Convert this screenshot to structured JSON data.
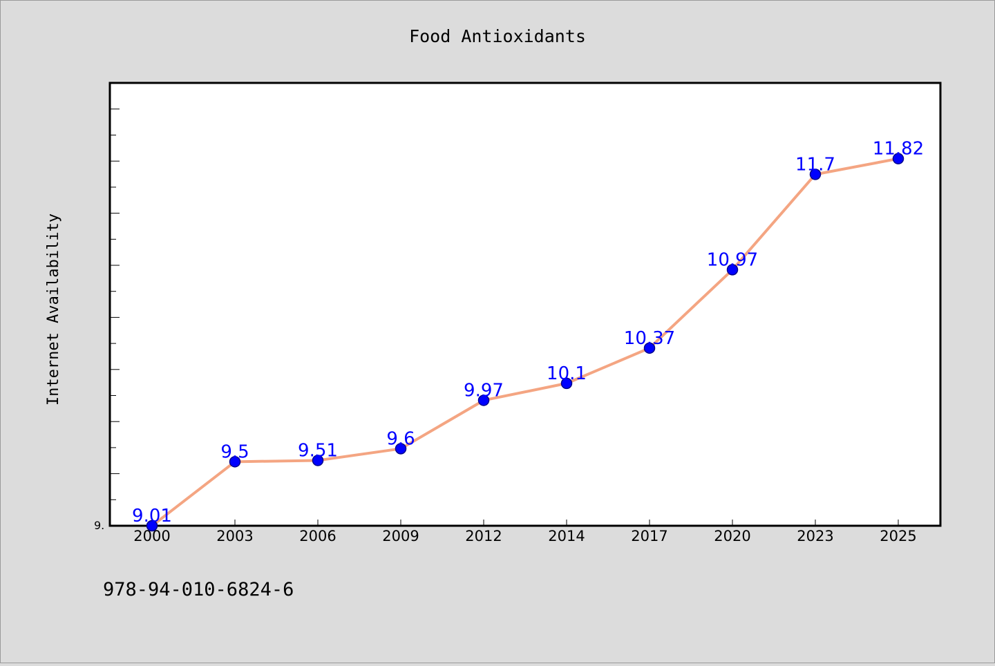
{
  "footer": {
    "code": "978-94-010-6824-6"
  },
  "colors": {
    "background": "#dcdcdc",
    "plot_background": "#ffffff",
    "line": "#f4a582",
    "marker": "#0000ff",
    "marker_edge": "#00008b",
    "data_label": "#0000ff"
  },
  "chart_data": {
    "type": "line",
    "title": "Food Antioxidants",
    "xlabel": "",
    "ylabel": "Internet Availability",
    "categories": [
      "2000",
      "2003",
      "2006",
      "2009",
      "2012",
      "2014",
      "2017",
      "2020",
      "2023",
      "2025"
    ],
    "series": [
      {
        "values": [
          9.01,
          9.5,
          9.51,
          9.6,
          9.97,
          10.1,
          10.37,
          10.97,
          11.7,
          11.82
        ]
      }
    ],
    "data_labels": [
      "9.01",
      "9.5",
      "9.51",
      "9.6",
      "9.97",
      "10.1",
      "10.37",
      "10.97",
      "11.7",
      "11.82"
    ],
    "ylim": [
      9.01,
      12.4
    ],
    "y_tick_label": "9.",
    "grid": false,
    "legend": "none",
    "markers": "circle"
  }
}
